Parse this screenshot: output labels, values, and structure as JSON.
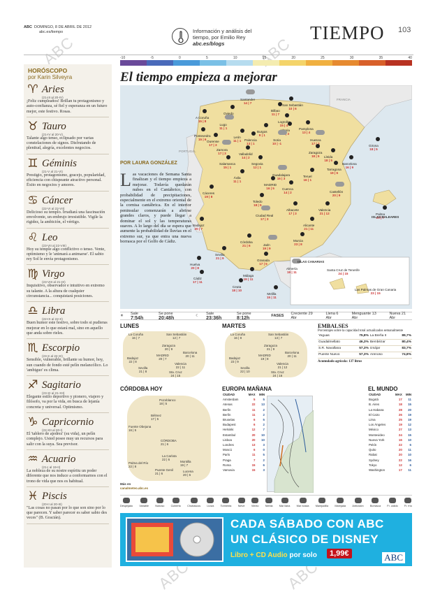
{
  "header": {
    "paper": "ABC",
    "date": "DOMINGO, 8 DE ABRIL DE 2012",
    "web": "abc.es/tiempo",
    "blog_line1": "Información y análisis del",
    "blog_line2": "tiempo, por Emilio Rey",
    "blog_url": "abc.es/blogs",
    "section": "TIEMPO",
    "page": "103"
  },
  "scale": {
    "labels": [
      "-10",
      "-5",
      "0",
      "5",
      "10",
      "15",
      "20",
      "25",
      "30",
      "35",
      "40"
    ],
    "colors": [
      "#6a4a9a",
      "#4a6aba",
      "#4a9ada",
      "#7ac0e6",
      "#b6dcef",
      "#f4ecb0",
      "#f4d46a",
      "#f0b040",
      "#e68a30",
      "#d8602a",
      "#b83222"
    ]
  },
  "headline": "El tiempo empieza a mejorar",
  "byline": "POR LAURA GONZÁLEZ",
  "lead": {
    "dropcap": "L",
    "text": "as vacaciones de Semana Santa finalizan y el tiempo empieza a mejorar. Todavía quedarán nubes en el Cantábrico, con probabilidad de precipitaciones, especialmente en el extremo oriental de la cornisa cantábrica. En el interior peninsular comenzarán a abrirse grandes claros, y puede llegar a dominar el sol y las temperaturas suaves. A lo largo del día se espera que aumente la probabilidad de lluvias en el extremo sur, ya que entra una nueva borrasca por el Golfo de Cádiz."
  },
  "map": {
    "cities": [
      {
        "name": "Santander",
        "t": "14 | 7"
      },
      {
        "name": "San Sebastián",
        "t": "10 | 6"
      },
      {
        "name": "Oviedo",
        "t": "13 | 5"
      },
      {
        "name": "Bilbao",
        "t": "11 | 7"
      },
      {
        "name": "A Coruña",
        "t": "15 | 8"
      },
      {
        "name": "Lugo",
        "t": "11 | 1"
      },
      {
        "name": "León",
        "t": "11 | 1"
      },
      {
        "name": "Burgos",
        "t": "9 | 1"
      },
      {
        "name": "Vitoria",
        "t": "11 | 3"
      },
      {
        "name": "Pamplona",
        "t": "13 | 4"
      },
      {
        "name": "Huesca",
        "t": "17 | 3"
      },
      {
        "name": "Girona",
        "t": "18 | 5"
      },
      {
        "name": "Pontevedra",
        "t": "15 | 6"
      },
      {
        "name": "Ourense",
        "t": "17 | 3"
      },
      {
        "name": "Palencia",
        "t": "13 | 1"
      },
      {
        "name": "Soria",
        "t": "10 | -1"
      },
      {
        "name": "Logroño",
        "t": "15 | 4"
      },
      {
        "name": "Zaragoza",
        "t": "18 | 5"
      },
      {
        "name": "Lleida",
        "t": "18 | 5"
      },
      {
        "name": "Barcelona",
        "t": "16 | 9"
      },
      {
        "name": "Zamora",
        "t": "17 | 3"
      },
      {
        "name": "Valladolid",
        "t": "14 | 2"
      },
      {
        "name": "Tarragona",
        "t": "19 | 6"
      },
      {
        "name": "Salamanca",
        "t": "15 | 1"
      },
      {
        "name": "Segovia",
        "t": "12 | 1"
      },
      {
        "name": "Guadalajara",
        "t": "16 | 3"
      },
      {
        "name": "Teruel",
        "t": "16 | 1"
      },
      {
        "name": "Ávila",
        "t": "11 | 1"
      },
      {
        "name": "MADRID",
        "t": "16 | 5"
      },
      {
        "name": "Cuenca",
        "t": "14 | 2"
      },
      {
        "name": "Castellón",
        "t": "20 | 9"
      },
      {
        "name": "Cáceres",
        "t": "19 | 8"
      },
      {
        "name": "Toledo",
        "t": "18 | 5"
      },
      {
        "name": "Valencia",
        "t": "21 | 12"
      },
      {
        "name": "Palma",
        "t": "20 | 7"
      },
      {
        "name": "Ciudad Real",
        "t": "17 | 3"
      },
      {
        "name": "Albacete",
        "t": "17 | 3"
      },
      {
        "name": "Badajoz",
        "t": "20 | 7"
      },
      {
        "name": "Alicante",
        "t": "21 | 11"
      },
      {
        "name": "Córdoba",
        "t": "21 | 6"
      },
      {
        "name": "Jaén",
        "t": "19 | 9"
      },
      {
        "name": "Murcia",
        "t": "23 | 8"
      },
      {
        "name": "Sevilla",
        "t": "21 | 9"
      },
      {
        "name": "Granada",
        "t": "17 | 5"
      },
      {
        "name": "Huelva",
        "t": "20 | 8"
      },
      {
        "name": "Almería",
        "t": "19 | 11"
      },
      {
        "name": "Cádiz",
        "t": "17 | 11"
      },
      {
        "name": "Málaga",
        "t": "19 | 11"
      },
      {
        "name": "Ceuta",
        "t": "18 | 10"
      },
      {
        "name": "Melilla",
        "t": "15 | 11"
      }
    ],
    "labels": {
      "france": "FRANCIA",
      "portugal": "PORTUGAL",
      "baleares": "ISLAS BALEARES",
      "canarias": "ISLAS CANARIAS"
    },
    "canarias": [
      {
        "name": "Santa Cruz de Tenerife",
        "t": "24 | 15"
      },
      {
        "name": "Las Palmas de Gran Canaria",
        "t": "23 | 15"
      }
    ]
  },
  "sunbar": {
    "sale_lbl": "Sale",
    "sale": "7:54h",
    "se_pone_lbl": "Se pone",
    "se_pone": "20:48h",
    "sale2_lbl": "Sale",
    "sale2": "23:36h",
    "se_pone2_lbl": "Se pone",
    "se_pone2": "8:12h",
    "fases": "FASES",
    "creciente": "Creciente 29 Abr",
    "llena": "Llena 6 Abr",
    "menguante": "Menguante 13 Abr",
    "nueva": "Nueva 21 Abr"
  },
  "lunes": {
    "title": "LUNES",
    "cities": [
      {
        "name": "La Coruña",
        "t": "16 | 7"
      },
      {
        "name": "San Sebastián",
        "t": "12 | 7"
      },
      {
        "name": "Zaragoza",
        "t": "20 | 9"
      },
      {
        "name": "Barcelona",
        "t": "20 | 11"
      },
      {
        "name": "MADRID",
        "t": "20 | 7"
      },
      {
        "name": "Badajoz",
        "t": "22 | 8"
      },
      {
        "name": "Valencia",
        "t": "22 | 11"
      },
      {
        "name": "Sevilla",
        "t": "21 | 8"
      },
      {
        "name": "Sta. Cruz",
        "t": "24 | 15"
      }
    ]
  },
  "martes": {
    "title": "MARTES",
    "cities": [
      {
        "name": "La Coruña",
        "t": "16 | 8"
      },
      {
        "name": "San Sebastián",
        "t": "13 | 7"
      },
      {
        "name": "Zaragoza",
        "t": "21 | 9"
      },
      {
        "name": "Barcelona",
        "t": "20 | 11"
      },
      {
        "name": "MADRID",
        "t": "19 | 8"
      },
      {
        "name": "Badajoz",
        "t": "23 | 9"
      },
      {
        "name": "Valencia",
        "t": "21 | 12"
      },
      {
        "name": "Sevilla",
        "t": "22 | 10"
      },
      {
        "name": "Sta. Cruz",
        "t": "24 | 16"
      }
    ]
  },
  "embalses": {
    "title": "EMBALSES",
    "subtitle": "Porcentajes sobre la capacidad total actualizados semanalmente",
    "rows": [
      {
        "a": "Yeguas",
        "av": "75,8%",
        "b": "La Breña II",
        "bv": "89,7%"
      },
      {
        "a": "Guadalmellato",
        "av": "46,3%",
        "b": "Bembézar",
        "bv": "80,4%"
      },
      {
        "a": "S.R. Navallana",
        "av": "57,3%",
        "b": "Iznájar",
        "bv": "83,7%"
      },
      {
        "a": "Puente Nuevo",
        "av": "57,3%",
        "b": "Arenoso",
        "bv": "74,8%"
      }
    ],
    "total": "Acumulado agrícola: 137 litros"
  },
  "cordoba": {
    "title": "CÓRDOBA HOY",
    "cities": [
      {
        "name": "Pozoblanco",
        "t": "18 | 5"
      },
      {
        "name": "Bélmez",
        "t": "17 | 5"
      },
      {
        "name": "Fuente Obejuna",
        "t": "16 | 5"
      },
      {
        "name": "CÓRDOBA",
        "t": "21 | 6"
      },
      {
        "name": "La Carlota",
        "t": "22 | 6"
      },
      {
        "name": "Montilla",
        "t": "19 | 7"
      },
      {
        "name": "Palma del Río",
        "t": "22 | 8"
      },
      {
        "name": "Puente Genil",
        "t": "21 | 6"
      },
      {
        "name": "Lucena",
        "t": "20 | 6"
      }
    ],
    "more": "Más en",
    "more_url": "canalmeteo.abc.es"
  },
  "europa": {
    "title": "EUROPA MAÑANA",
    "h_city": "CIUDAD",
    "h_max": "MAX",
    "h_min": "MIN",
    "rows": [
      {
        "c": "Amsterdam",
        "mx": "5",
        "mn": "5"
      },
      {
        "c": "Atenas",
        "mx": "22",
        "mn": "13"
      },
      {
        "c": "Berlín",
        "mx": "11",
        "mn": "2"
      },
      {
        "c": "Berlín",
        "mx": "11",
        "mn": "2"
      },
      {
        "c": "Bruselas",
        "mx": "6",
        "mn": "5"
      },
      {
        "c": "Budapest",
        "mx": "6",
        "mn": "2"
      },
      {
        "c": "Helsinki",
        "mx": "12",
        "mn": "7"
      },
      {
        "c": "Estambul",
        "mx": "20",
        "mn": "10"
      },
      {
        "c": "Lisboa",
        "mx": "20",
        "mn": "10"
      },
      {
        "c": "Londres",
        "mx": "13",
        "mn": "3"
      },
      {
        "c": "Moscú",
        "mx": "6",
        "mn": "0"
      },
      {
        "c": "París",
        "mx": "11",
        "mn": "5"
      },
      {
        "c": "Praga",
        "mx": "7",
        "mn": "2"
      },
      {
        "c": "Roma",
        "mx": "15",
        "mn": "6"
      },
      {
        "c": "Varsovia",
        "mx": "15",
        "mn": "3"
      }
    ]
  },
  "mundo": {
    "title": "EL MUNDO",
    "h_city": "CIUDAD",
    "h_max": "MAX",
    "h_min": "MIN",
    "rows": [
      {
        "c": "Bogotá",
        "mx": "17",
        "mn": "11"
      },
      {
        "c": "B. Aires",
        "mx": "18",
        "mn": "15"
      },
      {
        "c": "La Habana",
        "mx": "28",
        "mn": "20"
      },
      {
        "c": "El Cairo",
        "mx": "26",
        "mn": "19"
      },
      {
        "c": "Lima",
        "mx": "25",
        "mn": "19"
      },
      {
        "c": "Los Ángeles",
        "mx": "19",
        "mn": "12"
      },
      {
        "c": "México",
        "mx": "27",
        "mn": "13"
      },
      {
        "c": "Montevideo",
        "mx": "24",
        "mn": "15"
      },
      {
        "c": "Nueva York",
        "mx": "16",
        "mn": "10"
      },
      {
        "c": "Pekín",
        "mx": "22",
        "mn": "6"
      },
      {
        "c": "Quito",
        "mx": "20",
        "mn": "11"
      },
      {
        "c": "Rabat",
        "mx": "20",
        "mn": "10"
      },
      {
        "c": "Sydney",
        "mx": "22",
        "mn": "16"
      },
      {
        "c": "Tokyo",
        "mx": "12",
        "mn": "6"
      },
      {
        "c": "Washington",
        "mx": "17",
        "mn": "11"
      }
    ]
  },
  "legend": [
    "Despejado",
    "Variable",
    "Nuboso",
    "Cubierto",
    "Chubascos",
    "Lluvia",
    "Tormenta",
    "Nieve",
    "Viento",
    "Niebla",
    "Mar llana",
    "Mar rizada",
    "Marejadilla",
    "Marejada",
    "Anticiclón",
    "Borrasca",
    "Fr. cálido",
    "Fr. frío"
  ],
  "horoscope": {
    "title": "HORÓSCOPO",
    "author": "por Karin Silveyra",
    "signs": [
      {
        "sym": "♈",
        "name": "Aries",
        "date": "(21-III al 20-IV)",
        "text": "¡Feliz cumpleaños! Brillan tu protagonismo y auto-confianza, sé fiel y esperanza en un futuro mejor, este festivo. Rosas."
      },
      {
        "sym": "♉",
        "name": "Tauro",
        "date": "(21-IV al 20-V)",
        "text": "Talante algo tenso, eclipsado por varias constelaciones de signos. Disfrutando de plenitud, alegría, excelentes negocios."
      },
      {
        "sym": "♊",
        "name": "Géminis",
        "date": "(21-V al 21-VI)",
        "text": "Prestigio, protagonismo, gracejo, popularidad, eficiencia con chispeante atractivo personal. Éxito en negocios y amores."
      },
      {
        "sym": "♋",
        "name": "Cáncer",
        "date": "(22-VI al 22-VII)",
        "text": "Delicioso su templo. Irradiará una fascinación envolvente, un embrujo irresistible. Vigile la rigidez, la ambición, el vértigo."
      },
      {
        "sym": "♌",
        "name": "Leo",
        "date": "(23-VII al 22-VIII)",
        "text": "Hoy su temple algo conflictivo o tenso. Vente, optimismo y le 'animará a animarse'. El sabio rey Sol le envía protagonismo."
      },
      {
        "sym": "♍",
        "name": "Virgo",
        "date": "(23-VIII al 21-IX)",
        "text": "Inquisitivo, observador e intuitivo en extremo su talante. A la altura de cualquier circunstancia... conquistará posiciones."
      },
      {
        "sym": "♎",
        "name": "Libra",
        "date": "(22-IX al 22-X)",
        "text": "Buen humor este festivo, sobre todo si pudieras mejorar en lo que estará mal, sino en aquello que anda sobre rieles."
      },
      {
        "sym": "♏",
        "name": "Escorpio",
        "date": "(23-X al 22-XI)",
        "text": "Sensible, vulnerable, brillante su humor, hoy, sun cuando de fondo esté pelín melancólico. Lo 'ambiguo' es clima."
      },
      {
        "sym": "♐",
        "name": "Sagitario",
        "date": "(23-XI al 21-XII)",
        "text": "Elegante estilo deportivo y pionero, viajero y filósofo, va por la vida, en busca de lejanía concreta y universal. Optimismo."
      },
      {
        "sym": "♑",
        "name": "Capricornio",
        "date": "(22-XII al 20-I)",
        "text": "El 'tablero de ajedrez' (su vida), un pelín complejo. Usted posee muy un recursos para salir con la suya. Sea previsor."
      },
      {
        "sym": "♒",
        "name": "Acuario",
        "date": "(21-I al 19-II)",
        "text": "La nobleza de su nostre espíritu un poder diferente que nos induce a conformarnos con el trono de vida que nos es habitual."
      },
      {
        "sym": "♓",
        "name": "Piscis",
        "date": "(20-II al 20-III)",
        "text": "\"Las cosas no pasan por lo que son sino por lo que parecen. Y saber parecer es saber sabio des veces\" (B. Gracián)."
      }
    ]
  },
  "ad": {
    "line1": "CADA SÁBADO CON ABC",
    "line2": "UN CLÁSICO DE DISNEY",
    "line3a": "Libro",
    "line3b": "+ CD Audio",
    "line3c": "por solo",
    "price": "1,99€",
    "brand": "ABC",
    "colors": {
      "bg": "#1fb0e0",
      "price_bg": "#c4121a"
    }
  }
}
